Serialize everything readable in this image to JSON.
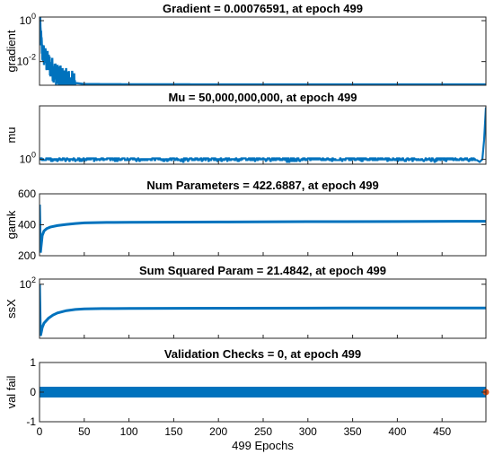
{
  "chart_data": [
    {
      "type": "line",
      "title": "Gradient = 0.00076591, at epoch 499",
      "ylabel": "gradient",
      "yscale": "log",
      "ylim": [
        0.0007,
        1.5
      ],
      "yticks": [
        {
          "value": 1,
          "base": "10",
          "exp": "0"
        },
        {
          "value": 0.01,
          "base": "10",
          "exp": "-2"
        }
      ],
      "color": "#0072BD",
      "series": [
        {
          "x": [
            0,
            1,
            2,
            3,
            5,
            8,
            10,
            12,
            15,
            18,
            20,
            25,
            30,
            35,
            40,
            50,
            100,
            200,
            300,
            400,
            499
          ],
          "y": [
            1.0,
            0.3,
            0.08,
            0.03,
            0.02,
            0.01,
            0.008,
            0.006,
            0.004,
            0.003,
            0.002,
            0.0015,
            0.0012,
            0.001,
            0.0009,
            0.0008,
            0.00078,
            0.00077,
            0.00077,
            0.00077,
            0.00076591
          ]
        }
      ]
    },
    {
      "type": "line",
      "title": "Mu = 50,000,000,000, at epoch 499",
      "ylabel": "mu",
      "yscale": "log",
      "ylim": [
        0.1,
        100000000000.0
      ],
      "yticks": [
        {
          "value": 1,
          "base": "10",
          "exp": "0"
        }
      ],
      "color": "#0072BD",
      "series": [
        {
          "x": [
            0,
            490,
            495,
            499
          ],
          "y": [
            1,
            1,
            10000.0,
            50000000000
          ]
        }
      ]
    },
    {
      "type": "line",
      "title": "Num Parameters = 422.6887, at epoch 499",
      "ylabel": "gamk",
      "ylim": [
        200,
        600
      ],
      "yticks": [
        {
          "value": 200,
          "label": "200"
        },
        {
          "value": 400,
          "label": "400"
        },
        {
          "value": 600,
          "label": "600"
        }
      ],
      "color": "#0072BD",
      "series": [
        {
          "x": [
            0,
            1,
            3,
            5,
            8,
            12,
            20,
            30,
            40,
            50,
            75,
            100,
            200,
            300,
            400,
            499
          ],
          "y": [
            530,
            220,
            330,
            360,
            375,
            385,
            395,
            402,
            408,
            412,
            415,
            416,
            418,
            420,
            421,
            422.6887
          ]
        }
      ]
    },
    {
      "type": "line",
      "title": "Sum Squared Param = 21.4842, at epoch 499",
      "ylabel": "ssX",
      "yscale": "log",
      "ylim": [
        3,
        140
      ],
      "yticks": [
        {
          "value": 100,
          "base": "10",
          "exp": "2"
        }
      ],
      "color": "#0072BD",
      "series": [
        {
          "x": [
            0,
            1,
            2,
            3,
            5,
            10,
            15,
            20,
            30,
            40,
            50,
            70,
            100,
            200,
            300,
            400,
            499
          ],
          "y": [
            100,
            3.5,
            4.5,
            6,
            8,
            11,
            13.5,
            15.5,
            18,
            19.5,
            20.2,
            20.6,
            20.8,
            21.1,
            21.3,
            21.4,
            21.4842
          ]
        }
      ]
    },
    {
      "type": "scatter",
      "title": "Validation Checks = 0, at epoch 499",
      "ylabel": "val fail",
      "xlabel": "499 Epochs",
      "ylim": [
        -1,
        1
      ],
      "xlim": [
        0,
        499
      ],
      "yticks": [
        {
          "value": -1,
          "label": "-1"
        },
        {
          "value": 0,
          "label": "0"
        },
        {
          "value": 1,
          "label": "1"
        }
      ],
      "xticks": [
        0,
        50,
        100,
        150,
        200,
        250,
        300,
        350,
        400,
        450
      ],
      "color": "#0072BD",
      "best_marker": {
        "x": 499,
        "y": 0,
        "color": "#D95319"
      },
      "series": [
        {
          "x_start": 0,
          "x_end": 499,
          "y": 0
        }
      ]
    }
  ]
}
